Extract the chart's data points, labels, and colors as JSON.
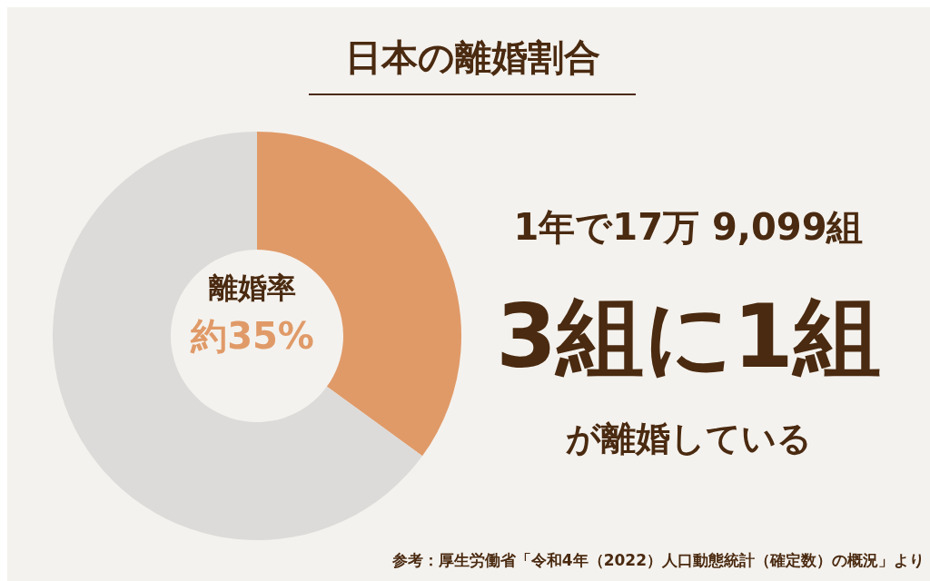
{
  "chart_data": {
    "type": "donut",
    "title": "日本の離婚割合",
    "categories": [
      null,
      null
    ],
    "values": [
      35,
      65
    ],
    "colors": [
      "#e09a68",
      "#dcdbd9"
    ],
    "annotations": [
      "離婚率",
      "約35%",
      "1年で17万 9,099組",
      "3組に1組",
      "が離婚している",
      "参考：厚生労働省「令和4年（2022）人口動態統計（確定数）の概況」より"
    ]
  }
}
